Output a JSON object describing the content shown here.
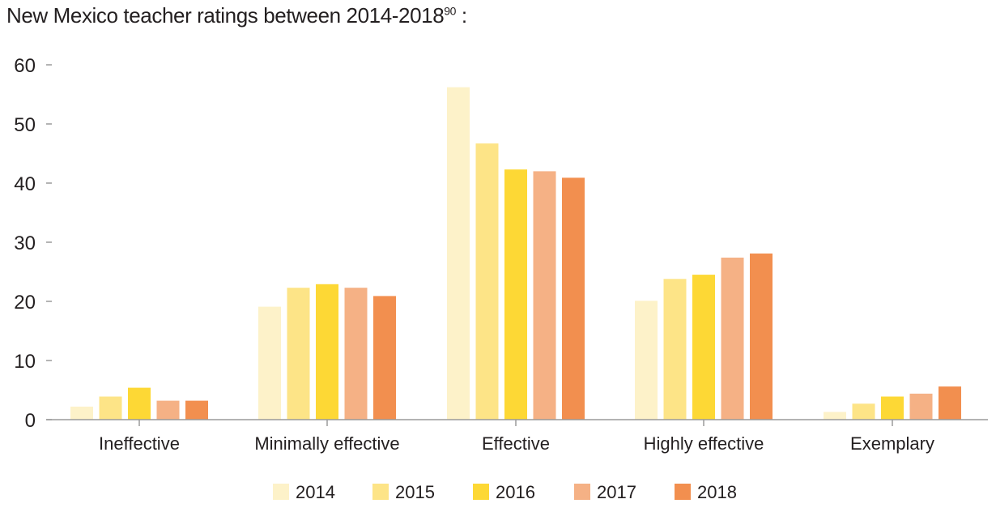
{
  "title": {
    "text": "New Mexico teacher ratings between 2014-2018",
    "footnote": "90",
    "suffix": " :"
  },
  "chart_data": {
    "type": "bar",
    "title": "New Mexico teacher ratings between 2014-2018",
    "categories": [
      "Ineffective",
      "Minimally effective",
      "Effective",
      "Highly effective",
      "Exemplary"
    ],
    "series": [
      {
        "name": "2014",
        "color": "#fdf2c9",
        "values": [
          2.2,
          19.1,
          56.2,
          20.1,
          1.3
        ]
      },
      {
        "name": "2015",
        "color": "#fde487",
        "values": [
          3.9,
          22.3,
          46.7,
          23.8,
          2.7
        ]
      },
      {
        "name": "2016",
        "color": "#fdd835",
        "values": [
          5.4,
          22.9,
          42.3,
          24.5,
          3.9
        ]
      },
      {
        "name": "2017",
        "color": "#f5b185",
        "values": [
          3.2,
          22.3,
          42.0,
          27.4,
          4.4
        ]
      },
      {
        "name": "2018",
        "color": "#f28f4f",
        "values": [
          3.2,
          20.9,
          40.9,
          28.1,
          5.6
        ]
      }
    ],
    "ylim": [
      0,
      60
    ],
    "yticks": [
      0,
      10,
      20,
      30,
      40,
      50,
      60
    ],
    "xlabel": "",
    "ylabel": "",
    "grid": false,
    "legend": "bottom-center"
  }
}
